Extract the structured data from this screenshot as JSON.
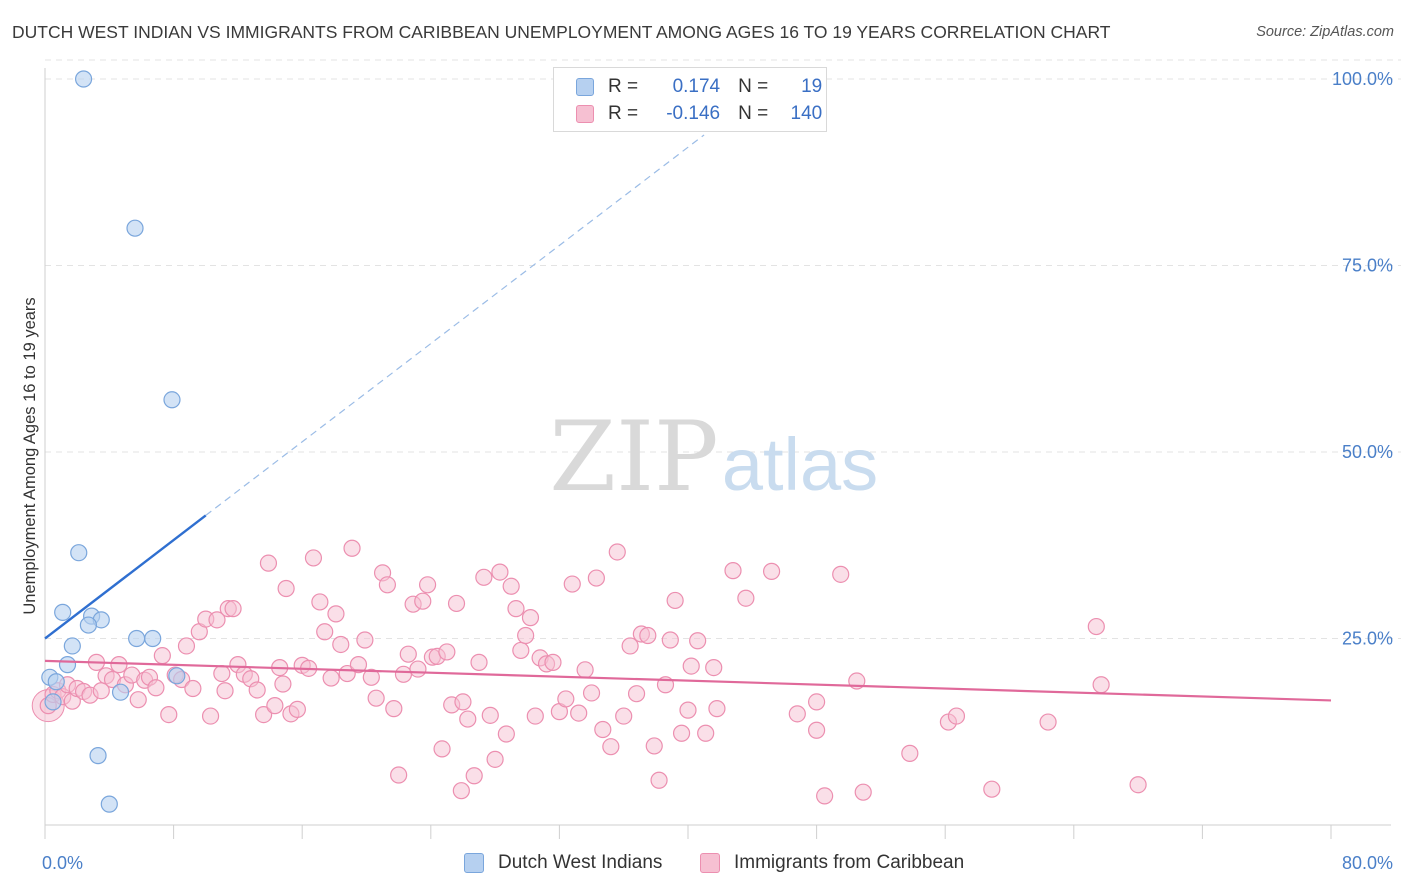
{
  "title": "DUTCH WEST INDIAN VS IMMIGRANTS FROM CARIBBEAN UNEMPLOYMENT AMONG AGES 16 TO 19 YEARS CORRELATION CHART",
  "source": "Source: ZipAtlas.com",
  "colors": {
    "blue_fill": "#b6d0f0",
    "blue_stroke": "#7aa6dc",
    "blue_line": "#2f6fd0",
    "pink_fill": "#f6c0d2",
    "pink_stroke": "#ec8fb0",
    "pink_line": "#e0699a",
    "tick_text": "#4a7fc8",
    "grid": "#e3e3e3"
  },
  "legend": {
    "rows": [
      {
        "r_label": "R =",
        "r_value": "0.174",
        "n_label": "N =",
        "n_value": "19"
      },
      {
        "r_label": "R =",
        "r_value": "-0.146",
        "n_label": "N =",
        "n_value": "140"
      }
    ]
  },
  "bottom_legend": {
    "blue": "Dutch West Indians",
    "pink": "Immigrants from Caribbean"
  },
  "watermark": {
    "zip": "ZIP",
    "atlas": "atlas"
  },
  "chart_data": {
    "type": "scatter",
    "title": "DUTCH WEST INDIAN VS IMMIGRANTS FROM CARIBBEAN UNEMPLOYMENT AMONG AGES 16 TO 19 YEARS CORRELATION CHART",
    "xlabel": "",
    "ylabel": "Unemployment Among Ages 16 to 19 years",
    "xlim": [
      0,
      80
    ],
    "ylim": [
      0,
      100
    ],
    "x_tick_labels": [
      "0.0%",
      "80.0%"
    ],
    "y_ticks": [
      25,
      50,
      75,
      100
    ],
    "y_tick_labels": [
      "25.0%",
      "50.0%",
      "75.0%",
      "100.0%"
    ],
    "grid": true,
    "series": [
      {
        "name": "Dutch West Indians",
        "r": 0.174,
        "n": 19,
        "trend": {
          "x0": 0,
          "y0": 25.0,
          "x1": 10.0,
          "y1": 41.5,
          "dash_to_x": 41.0,
          "dash_to_y": 92.5
        },
        "points": [
          [
            2.4,
            100.0
          ],
          [
            5.6,
            80.0
          ],
          [
            7.9,
            57.0
          ],
          [
            2.1,
            36.5
          ],
          [
            1.1,
            28.5
          ],
          [
            2.9,
            28.0
          ],
          [
            3.5,
            27.5
          ],
          [
            2.7,
            26.8
          ],
          [
            5.7,
            25.0
          ],
          [
            6.7,
            25.0
          ],
          [
            1.7,
            24.0
          ],
          [
            1.4,
            21.5
          ],
          [
            8.2,
            20.0
          ],
          [
            0.3,
            19.8
          ],
          [
            0.7,
            19.2
          ],
          [
            4.7,
            17.8
          ],
          [
            0.5,
            16.5
          ],
          [
            3.3,
            9.3
          ],
          [
            4.0,
            2.8
          ]
        ]
      },
      {
        "name": "Immigrants from Caribbean",
        "r": -0.146,
        "n": 140,
        "trend": {
          "x0": 0,
          "y0": 22.0,
          "x1": 80.0,
          "y1": 16.7
        },
        "points": [
          [
            0.2,
            16.0
          ],
          [
            0.5,
            17.5
          ],
          [
            0.8,
            18.0
          ],
          [
            1.1,
            17.2
          ],
          [
            1.4,
            18.8
          ],
          [
            1.7,
            16.6
          ],
          [
            2.0,
            18.3
          ],
          [
            2.4,
            17.9
          ],
          [
            2.8,
            17.4
          ],
          [
            3.2,
            21.8
          ],
          [
            3.5,
            18.0
          ],
          [
            3.8,
            20.0
          ],
          [
            4.2,
            19.5
          ],
          [
            4.6,
            21.5
          ],
          [
            5.0,
            18.8
          ],
          [
            5.4,
            20.1
          ],
          [
            5.8,
            16.8
          ],
          [
            6.2,
            19.4
          ],
          [
            6.5,
            19.8
          ],
          [
            6.9,
            18.4
          ],
          [
            7.3,
            22.7
          ],
          [
            7.7,
            14.8
          ],
          [
            8.1,
            20.1
          ],
          [
            8.5,
            19.5
          ],
          [
            8.8,
            24.0
          ],
          [
            9.2,
            18.3
          ],
          [
            9.6,
            25.9
          ],
          [
            10.0,
            27.6
          ],
          [
            10.3,
            14.6
          ],
          [
            10.7,
            27.5
          ],
          [
            11.0,
            20.3
          ],
          [
            11.4,
            29.0
          ],
          [
            11.7,
            29.0
          ],
          [
            12.0,
            21.5
          ],
          [
            12.4,
            20.2
          ],
          [
            12.8,
            19.6
          ],
          [
            13.2,
            18.1
          ],
          [
            13.6,
            14.8
          ],
          [
            13.9,
            35.1
          ],
          [
            14.3,
            16.0
          ],
          [
            14.6,
            21.1
          ],
          [
            15.0,
            31.7
          ],
          [
            15.3,
            14.9
          ],
          [
            15.7,
            15.5
          ],
          [
            16.0,
            21.4
          ],
          [
            16.4,
            21.0
          ],
          [
            16.7,
            35.8
          ],
          [
            17.1,
            29.9
          ],
          [
            17.4,
            25.9
          ],
          [
            17.8,
            19.7
          ],
          [
            18.1,
            28.3
          ],
          [
            18.4,
            24.2
          ],
          [
            18.8,
            20.3
          ],
          [
            19.1,
            37.1
          ],
          [
            19.5,
            21.5
          ],
          [
            19.9,
            24.8
          ],
          [
            20.3,
            19.8
          ],
          [
            20.6,
            17.0
          ],
          [
            21.0,
            33.8
          ],
          [
            21.3,
            32.2
          ],
          [
            21.7,
            15.6
          ],
          [
            22.0,
            6.7
          ],
          [
            22.3,
            20.2
          ],
          [
            22.6,
            22.9
          ],
          [
            22.9,
            29.6
          ],
          [
            23.2,
            20.9
          ],
          [
            23.5,
            30.0
          ],
          [
            23.8,
            32.2
          ],
          [
            24.1,
            22.5
          ],
          [
            24.4,
            22.6
          ],
          [
            24.7,
            10.2
          ],
          [
            25.0,
            23.2
          ],
          [
            25.3,
            16.1
          ],
          [
            25.6,
            29.7
          ],
          [
            25.9,
            4.6
          ],
          [
            26.3,
            14.2
          ],
          [
            26.7,
            6.6
          ],
          [
            27.0,
            21.8
          ],
          [
            27.3,
            33.2
          ],
          [
            27.7,
            14.7
          ],
          [
            28.0,
            8.8
          ],
          [
            28.3,
            33.9
          ],
          [
            28.7,
            12.2
          ],
          [
            29.0,
            32.0
          ],
          [
            29.3,
            29.0
          ],
          [
            29.6,
            23.4
          ],
          [
            29.9,
            25.4
          ],
          [
            30.2,
            27.8
          ],
          [
            30.5,
            14.6
          ],
          [
            30.8,
            22.4
          ],
          [
            31.2,
            21.6
          ],
          [
            31.6,
            21.8
          ],
          [
            32.0,
            15.2
          ],
          [
            32.4,
            16.9
          ],
          [
            32.8,
            32.3
          ],
          [
            33.2,
            15.0
          ],
          [
            33.6,
            20.8
          ],
          [
            34.0,
            17.7
          ],
          [
            34.3,
            33.1
          ],
          [
            34.7,
            12.8
          ],
          [
            35.2,
            10.5
          ],
          [
            35.6,
            36.6
          ],
          [
            36.0,
            14.6
          ],
          [
            36.4,
            24.0
          ],
          [
            36.8,
            17.6
          ],
          [
            37.1,
            25.6
          ],
          [
            37.5,
            25.4
          ],
          [
            37.9,
            10.6
          ],
          [
            38.2,
            6.0
          ],
          [
            38.6,
            18.8
          ],
          [
            38.9,
            24.8
          ],
          [
            39.2,
            30.1
          ],
          [
            39.6,
            12.3
          ],
          [
            40.0,
            15.4
          ],
          [
            40.2,
            21.3
          ],
          [
            40.6,
            24.7
          ],
          [
            41.1,
            12.3
          ],
          [
            41.6,
            21.1
          ],
          [
            41.8,
            15.6
          ],
          [
            42.8,
            34.1
          ],
          [
            43.6,
            30.4
          ],
          [
            45.2,
            34.0
          ],
          [
            46.8,
            14.9
          ],
          [
            48.0,
            12.7
          ],
          [
            48.0,
            16.5
          ],
          [
            48.5,
            3.9
          ],
          [
            49.5,
            33.6
          ],
          [
            50.5,
            19.3
          ],
          [
            50.9,
            4.4
          ],
          [
            53.8,
            9.6
          ],
          [
            56.2,
            13.8
          ],
          [
            56.7,
            14.6
          ],
          [
            58.9,
            4.8
          ],
          [
            62.4,
            13.8
          ],
          [
            65.4,
            26.6
          ],
          [
            65.7,
            18.8
          ],
          [
            68.0,
            5.4
          ],
          [
            14.8,
            18.9
          ],
          [
            26.0,
            16.5
          ],
          [
            11.2,
            18.0
          ]
        ]
      }
    ]
  }
}
